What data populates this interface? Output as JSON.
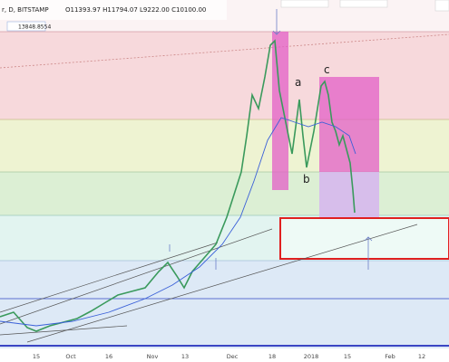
{
  "header": {
    "symbol": "r, D, BITSTAMP",
    "ohlc": "O11393.97 H11794.07 L9222.00 C10100.00",
    "indicator": "13848.8554"
  },
  "annotations": {
    "a": "a",
    "b": "b",
    "c": "c"
  },
  "x_axis": [
    "15",
    "Oct",
    "16",
    "Nov",
    "13",
    "Dec",
    "18",
    "2018",
    "15",
    "Feb",
    "12"
  ]
}
